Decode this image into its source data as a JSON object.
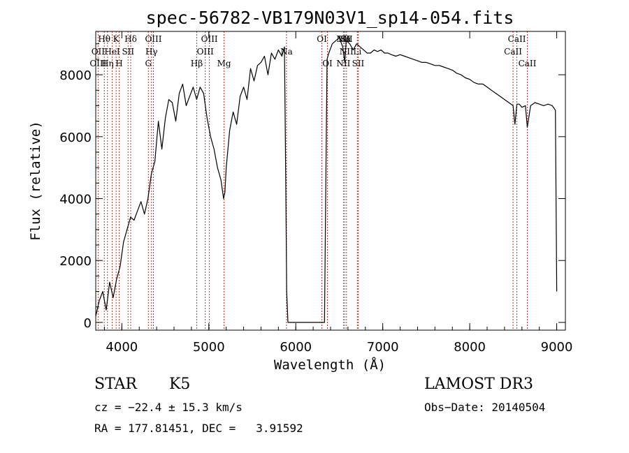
{
  "chart_data": {
    "type": "line",
    "title": "spec-56782-VB179N03V1_sp14-054.fits",
    "xlabel": "Wavelength (Å)",
    "ylabel": "Flux (relative)",
    "xlim": [
      3700,
      9100
    ],
    "ylim": [
      -250,
      9400
    ],
    "xticks": [
      4000,
      5000,
      6000,
      7000,
      8000,
      9000
    ],
    "yticks": [
      0,
      2000,
      4000,
      6000,
      8000
    ],
    "spectrum": {
      "wavelength": [
        3700,
        3740,
        3780,
        3820,
        3860,
        3900,
        3940,
        3980,
        4020,
        4060,
        4100,
        4140,
        4180,
        4220,
        4260,
        4300,
        4340,
        4380,
        4420,
        4460,
        4500,
        4540,
        4580,
        4620,
        4660,
        4700,
        4740,
        4780,
        4820,
        4860,
        4900,
        4940,
        4980,
        5020,
        5060,
        5100,
        5140,
        5170,
        5185,
        5200,
        5240,
        5280,
        5320,
        5360,
        5400,
        5440,
        5480,
        5520,
        5560,
        5600,
        5640,
        5680,
        5720,
        5760,
        5800,
        5840,
        5870,
        5885,
        5895,
        5910,
        5930,
        6330,
        6345,
        6360,
        6380,
        6420,
        6460,
        6500,
        6540,
        6563,
        6580,
        6620,
        6660,
        6700,
        6740,
        6780,
        6820,
        6860,
        6900,
        6940,
        6980,
        7020,
        7060,
        7100,
        7150,
        7200,
        7250,
        7300,
        7350,
        7400,
        7450,
        7500,
        7550,
        7600,
        7650,
        7700,
        7750,
        7800,
        7850,
        7900,
        7950,
        8000,
        8050,
        8100,
        8150,
        8200,
        8250,
        8300,
        8350,
        8400,
        8450,
        8498,
        8520,
        8542,
        8570,
        8600,
        8640,
        8662,
        8700,
        8750,
        8800,
        8850,
        8900,
        8950,
        8985,
        9000
      ],
      "flux": [
        200,
        700,
        1000,
        400,
        1300,
        800,
        1400,
        1800,
        2600,
        3000,
        3400,
        3300,
        3600,
        3900,
        3500,
        4000,
        4800,
        5200,
        6500,
        5600,
        6600,
        7200,
        7100,
        6500,
        7400,
        7700,
        7000,
        7300,
        7600,
        7200,
        7600,
        7400,
        6600,
        6000,
        5600,
        5000,
        4600,
        4000,
        4200,
        5000,
        6200,
        6800,
        6400,
        7300,
        7600,
        7200,
        8200,
        7800,
        8300,
        8400,
        8600,
        8000,
        8700,
        8500,
        8800,
        8600,
        8900,
        4500,
        1000,
        0,
        0,
        0,
        4500,
        8500,
        8700,
        9000,
        9100,
        9200,
        8900,
        8400,
        9100,
        9000,
        8800,
        9000,
        8900,
        8800,
        8700,
        8700,
        8800,
        8750,
        8800,
        8700,
        8700,
        8650,
        8600,
        8650,
        8600,
        8550,
        8500,
        8450,
        8400,
        8400,
        8350,
        8300,
        8300,
        8250,
        8200,
        8150,
        8050,
        8000,
        7900,
        7850,
        7750,
        7700,
        7700,
        7600,
        7500,
        7400,
        7300,
        7200,
        7100,
        7000,
        6400,
        7050,
        7050,
        6950,
        7000,
        6300,
        7000,
        7100,
        7050,
        7000,
        7050,
        7000,
        6850,
        1000
      ]
    },
    "lines": [
      {
        "label": "Hθ",
        "wave": 3798,
        "row": 1
      },
      {
        "label": "OII",
        "wave": 3727,
        "row": 2
      },
      {
        "label": "OIII",
        "wave": 3727,
        "row": 3
      },
      {
        "label": "K",
        "wave": 3934,
        "row": 1
      },
      {
        "label": "HeI",
        "wave": 3889,
        "row": 2
      },
      {
        "label": "Hη",
        "wave": 3835,
        "row": 3
      },
      {
        "label": "Hδ",
        "wave": 4102,
        "row": 1
      },
      {
        "label": "SII",
        "wave": 4072,
        "row": 2
      },
      {
        "label": "H",
        "wave": 3969,
        "row": 3
      },
      {
        "label": "OIII",
        "wave": 4363,
        "row": 1
      },
      {
        "label": "Hγ",
        "wave": 4341,
        "row": 2
      },
      {
        "label": "G",
        "wave": 4305,
        "row": 3
      },
      {
        "label": "Hβ",
        "wave": 4861,
        "row": 3
      },
      {
        "label": "OIII",
        "wave": 5007,
        "row": 1
      },
      {
        "label": "OIII",
        "wave": 4959,
        "row": 2
      },
      {
        "label": "Mg",
        "wave": 5175,
        "row": 3
      },
      {
        "label": "Na",
        "wave": 5893,
        "row": 2
      },
      {
        "label": "OI",
        "wave": 6300,
        "row": 1
      },
      {
        "label": "OI",
        "wave": 6364,
        "row": 3
      },
      {
        "label": "NII",
        "wave": 6548,
        "row": 1
      },
      {
        "label": "Hα",
        "wave": 6563,
        "row": 1
      },
      {
        "label": "SII",
        "wave": 6583,
        "row": 1
      },
      {
        "label": "NII",
        "wave": 6548,
        "row": 3
      },
      {
        "label": "SII",
        "wave": 6717,
        "row": 3
      },
      {
        "label": "Li",
        "wave": 6708,
        "row": 2
      },
      {
        "label": "NII",
        "wave": 6583,
        "row": 2
      },
      {
        "label": "CaII",
        "wave": 8542,
        "row": 1
      },
      {
        "label": "CaII",
        "wave": 8498,
        "row": 2
      },
      {
        "label": "CaII",
        "wave": 8662,
        "row": 3
      }
    ],
    "colors": {
      "line_marker": "#c0392b",
      "spectrum": "#000000"
    }
  },
  "info": {
    "class": "STAR",
    "subclass": "K5",
    "survey": "LAMOST DR3",
    "cz": "cz = −22.4 ± 15.3 km/s",
    "obs_date": "Obs−Date: 20140504",
    "radec": "RA = 177.81451, DEC =   3.91592"
  }
}
